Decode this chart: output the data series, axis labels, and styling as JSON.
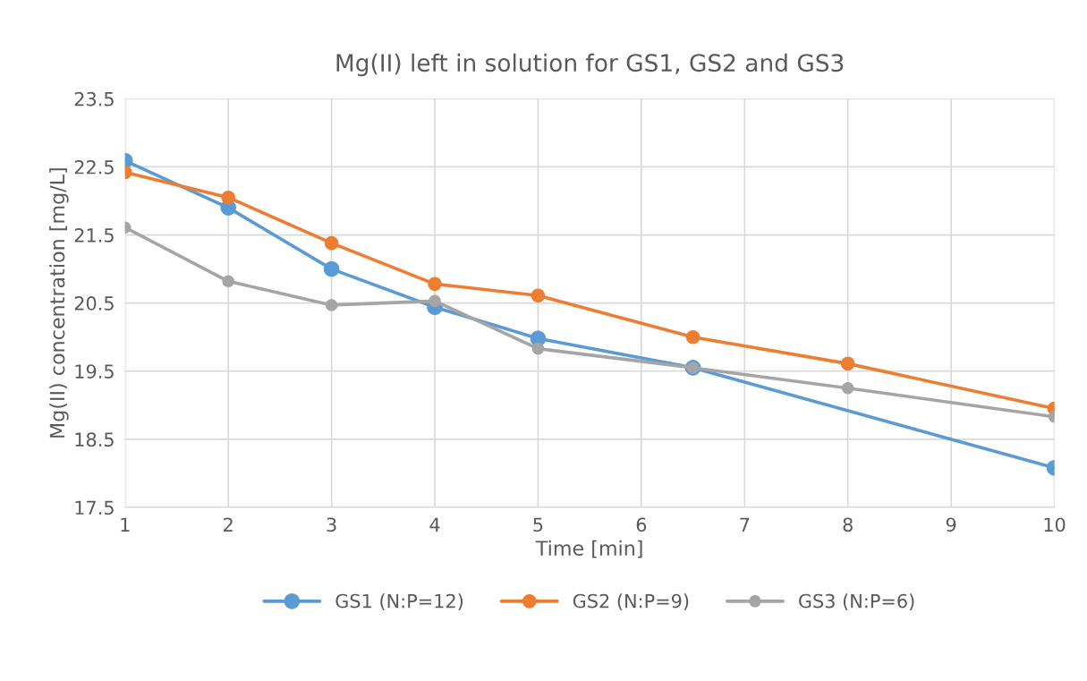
{
  "chart_data": {
    "type": "line",
    "title": "Mg(II) left in solution for GS1, GS2 and GS3",
    "xlabel": "Time [min]",
    "ylabel": "Mg(II) concentration [mg/L]",
    "x": [
      1,
      2,
      3,
      4,
      5,
      6.5,
      8,
      10
    ],
    "series": [
      {
        "name": "GS1 (N:P=12)",
        "color": "#5b9bd5",
        "x": [
          1,
          2,
          3,
          4,
          5,
          6.5,
          10
        ],
        "values": [
          22.59,
          21.9,
          21.0,
          20.44,
          19.98,
          19.55,
          18.08
        ]
      },
      {
        "name": "GS2 (N:P=9)",
        "color": "#ed7d31",
        "values": [
          22.42,
          22.05,
          21.38,
          20.78,
          20.61,
          20.0,
          19.61,
          18.95
        ]
      },
      {
        "name": "GS3 (N:P=6)",
        "color": "#a5a5a5",
        "values": [
          21.61,
          20.82,
          20.47,
          20.53,
          19.83,
          19.55,
          19.25,
          18.83
        ]
      }
    ],
    "xlim": [
      1,
      10
    ],
    "xticks": [
      1,
      2,
      3,
      4,
      5,
      6,
      7,
      8,
      9,
      10
    ],
    "ylim": [
      17.5,
      23.5
    ],
    "yticks": [
      17.5,
      18.5,
      19.5,
      20.5,
      21.5,
      22.5,
      23.5
    ],
    "grid": true,
    "legend": "bottom",
    "marker": "circle",
    "line_style": "solid"
  }
}
